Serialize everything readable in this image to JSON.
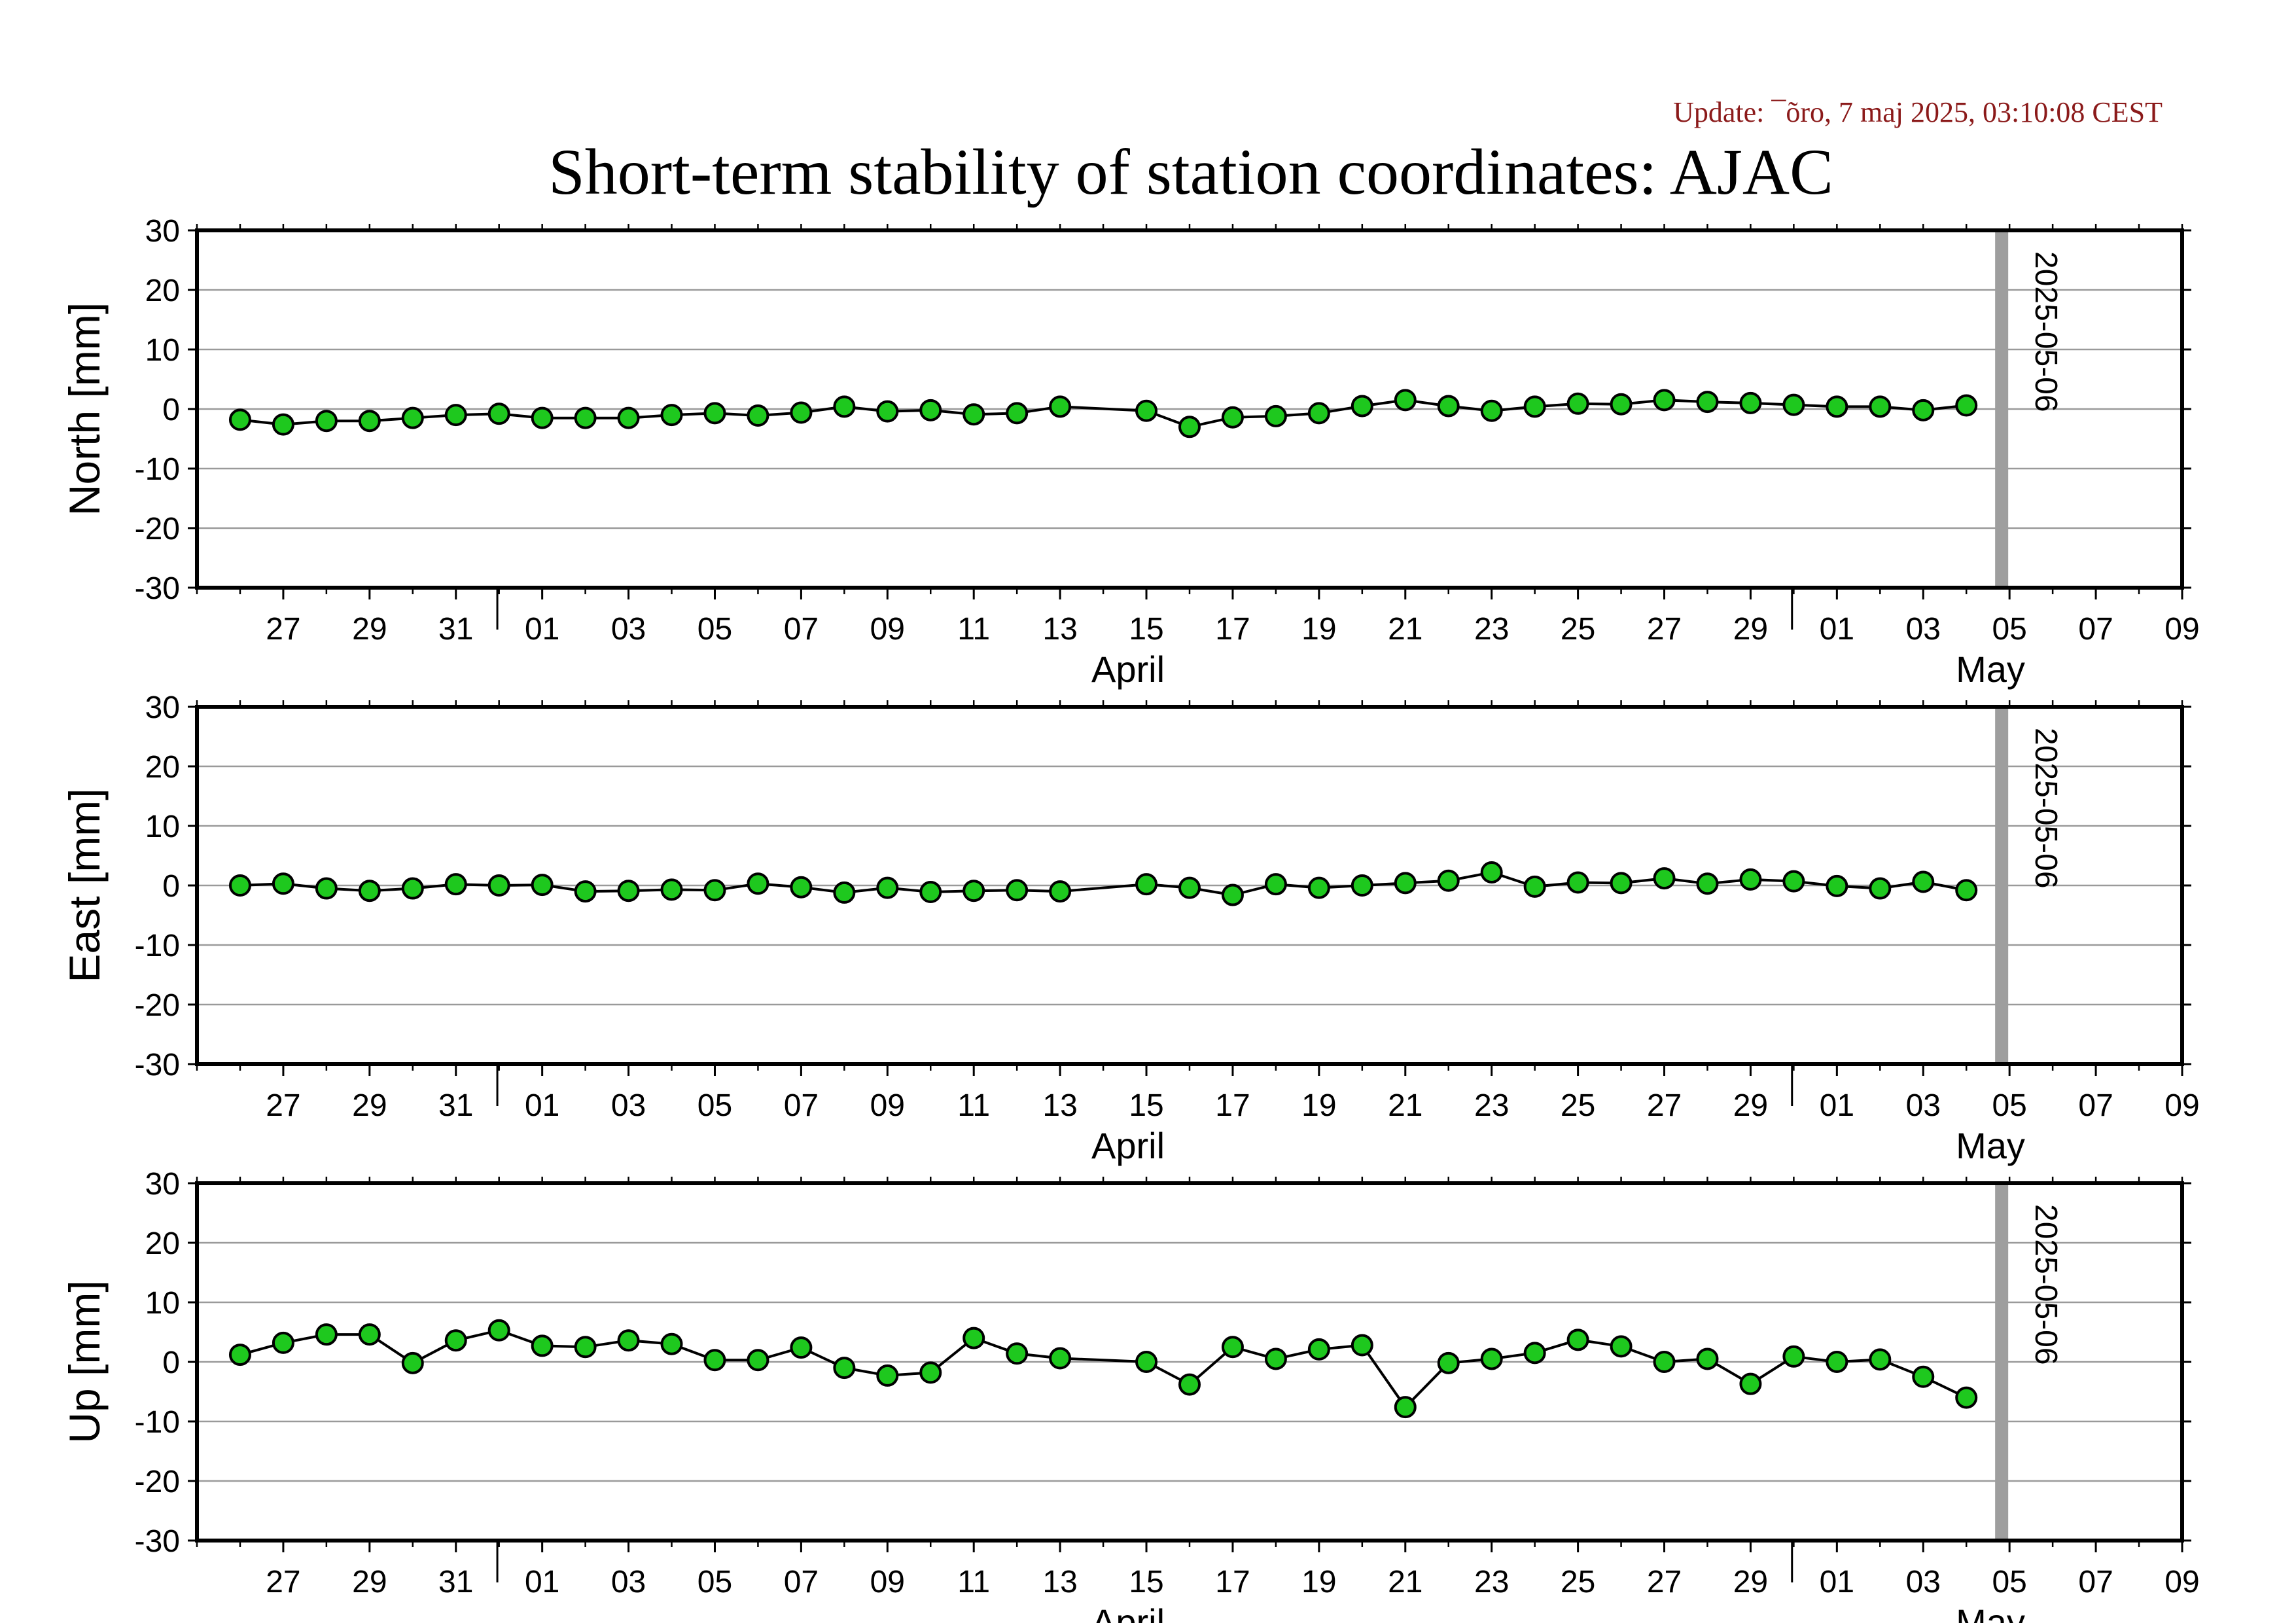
{
  "header": {
    "update_text": "Update: ¯õro, 7 maj 2025, 03:10:08 CEST",
    "title": "Short-term stability of station coordinates: AJAC"
  },
  "chart_data": {
    "type": "line",
    "shared_x": {
      "start_date": "2025-03-25",
      "end_date": "2025-05-10",
      "day_ticks": [
        "27",
        "29",
        "31",
        "01",
        "03",
        "05",
        "07",
        "09",
        "11",
        "13",
        "15",
        "17",
        "19",
        "21",
        "23",
        "25",
        "27",
        "29",
        "01",
        "03",
        "05",
        "07",
        "09"
      ],
      "month_labels": [
        "April",
        "May"
      ],
      "month_divider_dates": [
        "2025-03-31",
        "2025-04-30"
      ]
    },
    "marker": {
      "date": "2025-05-06",
      "label": "2025-05-06",
      "color": "#9e9e9e"
    },
    "styles": {
      "point_fill": "#1ec81e",
      "point_stroke": "#000000",
      "line_color": "#000000",
      "grid_color": "#9a9a9a"
    },
    "panels": [
      {
        "ylabel": "North [mm]",
        "ylim": [
          -30,
          30
        ],
        "yticks": [
          "30",
          "20",
          "10",
          "0",
          "-10",
          "-20",
          "-30"
        ],
        "series": [
          {
            "x": [
              "2025-03-26",
              "2025-03-27",
              "2025-03-28",
              "2025-03-29",
              "2025-03-30",
              "2025-03-31",
              "2025-04-01",
              "2025-04-02",
              "2025-04-03",
              "2025-04-04",
              "2025-04-05",
              "2025-04-06",
              "2025-04-07",
              "2025-04-08",
              "2025-04-09",
              "2025-04-10",
              "2025-04-11",
              "2025-04-12",
              "2025-04-13",
              "2025-04-14",
              "2025-04-16",
              "2025-04-17",
              "2025-04-18",
              "2025-04-19",
              "2025-04-20",
              "2025-04-21",
              "2025-04-22",
              "2025-04-23",
              "2025-04-24",
              "2025-04-25",
              "2025-04-26",
              "2025-04-27",
              "2025-04-28",
              "2025-04-29",
              "2025-04-30",
              "2025-05-01",
              "2025-05-02",
              "2025-05-03",
              "2025-05-04",
              "2025-05-05"
            ],
            "y": [
              -1.8,
              -2.6,
              -2.0,
              -2.0,
              -1.5,
              -1.0,
              -0.8,
              -1.5,
              -1.5,
              -1.5,
              -1.0,
              -0.7,
              -1.1,
              -0.6,
              0.4,
              -0.4,
              -0.2,
              -0.9,
              -0.7,
              0.4,
              -0.3,
              -3.0,
              -1.4,
              -1.2,
              -0.7,
              0.5,
              1.5,
              0.5,
              -0.3,
              0.4,
              0.9,
              0.8,
              1.5,
              1.2,
              1.0,
              0.7,
              0.4,
              0.4,
              -0.2,
              0.6
            ]
          }
        ]
      },
      {
        "ylabel": "East [mm]",
        "ylim": [
          -30,
          30
        ],
        "yticks": [
          "30",
          "20",
          "10",
          "0",
          "-10",
          "-20",
          "-30"
        ],
        "series": [
          {
            "x": [
              "2025-03-26",
              "2025-03-27",
              "2025-03-28",
              "2025-03-29",
              "2025-03-30",
              "2025-03-31",
              "2025-04-01",
              "2025-04-02",
              "2025-04-03",
              "2025-04-04",
              "2025-04-05",
              "2025-04-06",
              "2025-04-07",
              "2025-04-08",
              "2025-04-09",
              "2025-04-10",
              "2025-04-11",
              "2025-04-12",
              "2025-04-13",
              "2025-04-14",
              "2025-04-16",
              "2025-04-17",
              "2025-04-18",
              "2025-04-19",
              "2025-04-20",
              "2025-04-21",
              "2025-04-22",
              "2025-04-23",
              "2025-04-24",
              "2025-04-25",
              "2025-04-26",
              "2025-04-27",
              "2025-04-28",
              "2025-04-29",
              "2025-04-30",
              "2025-05-01",
              "2025-05-02",
              "2025-05-03",
              "2025-05-04",
              "2025-05-05"
            ],
            "y": [
              0.0,
              0.3,
              -0.5,
              -0.9,
              -0.5,
              0.2,
              0.0,
              0.1,
              -1.0,
              -0.9,
              -0.7,
              -0.8,
              0.3,
              -0.3,
              -1.2,
              -0.4,
              -1.1,
              -0.9,
              -0.8,
              -1.0,
              0.2,
              -0.4,
              -1.6,
              0.2,
              -0.4,
              0.0,
              0.4,
              0.8,
              2.2,
              -0.2,
              0.5,
              0.4,
              1.2,
              0.3,
              1.0,
              0.7,
              -0.1,
              -0.5,
              0.6,
              -0.8
            ]
          }
        ]
      },
      {
        "ylabel": "Up [mm]",
        "ylim": [
          -30,
          30
        ],
        "yticks": [
          "30",
          "20",
          "10",
          "0",
          "-10",
          "-20",
          "-30"
        ],
        "series": [
          {
            "x": [
              "2025-03-26",
              "2025-03-27",
              "2025-03-28",
              "2025-03-29",
              "2025-03-30",
              "2025-03-31",
              "2025-04-01",
              "2025-04-02",
              "2025-04-03",
              "2025-04-04",
              "2025-04-05",
              "2025-04-06",
              "2025-04-07",
              "2025-04-08",
              "2025-04-09",
              "2025-04-10",
              "2025-04-11",
              "2025-04-12",
              "2025-04-13",
              "2025-04-14",
              "2025-04-16",
              "2025-04-17",
              "2025-04-18",
              "2025-04-19",
              "2025-04-20",
              "2025-04-21",
              "2025-04-22",
              "2025-04-23",
              "2025-04-24",
              "2025-04-25",
              "2025-04-26",
              "2025-04-27",
              "2025-04-28",
              "2025-04-29",
              "2025-04-30",
              "2025-05-01",
              "2025-05-02",
              "2025-05-03",
              "2025-05-04",
              "2025-05-05"
            ],
            "y": [
              1.2,
              3.2,
              4.6,
              4.6,
              -0.2,
              3.6,
              5.3,
              2.7,
              2.5,
              3.6,
              3.0,
              0.3,
              0.3,
              2.4,
              -1.0,
              -2.3,
              -1.8,
              4.0,
              1.4,
              0.6,
              0.0,
              -3.8,
              2.5,
              0.5,
              2.1,
              2.8,
              -7.6,
              -0.2,
              0.5,
              1.5,
              3.7,
              2.6,
              0.0,
              0.5,
              -3.7,
              0.9,
              0.0,
              0.4,
              -2.5,
              -6.0
            ]
          }
        ]
      }
    ]
  }
}
